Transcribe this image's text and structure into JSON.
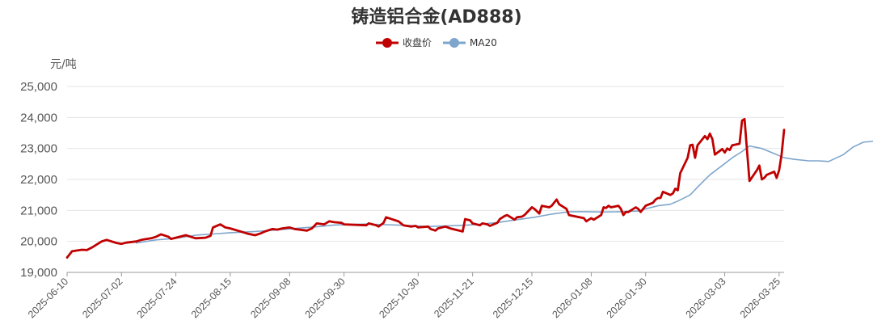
{
  "chart_data": {
    "type": "line",
    "title": "铸造铝合金(AD888)",
    "ylabel": "元/吨",
    "ylim": [
      19000,
      25000
    ],
    "yticks": [
      "19,000",
      "20,000",
      "21,000",
      "22,000",
      "23,000",
      "24,000",
      "25,000"
    ],
    "ytick_values": [
      19000,
      20000,
      21000,
      22000,
      23000,
      24000,
      25000
    ],
    "x_start": "2025-06-10",
    "x_end": "2026-03-27",
    "xticks": [
      "2025-06-10",
      "2025-07-02",
      "2025-07-24",
      "2025-08-15",
      "2025-09-08",
      "2025-09-30",
      "2025-10-30",
      "2025-11-21",
      "2025-12-15",
      "2026-01-08",
      "2026-01-30",
      "2026-03-03",
      "2026-03-25"
    ],
    "grid": true,
    "legend_position": "top-center",
    "series": [
      {
        "name": "收盘价",
        "color": "#c00000",
        "points": [
          [
            "2025-06-10",
            19480
          ],
          [
            "2025-06-12",
            19680
          ],
          [
            "2025-06-16",
            19730
          ],
          [
            "2025-06-18",
            19720
          ],
          [
            "2025-06-20",
            19800
          ],
          [
            "2025-06-24",
            20000
          ],
          [
            "2025-06-26",
            20050
          ],
          [
            "2025-06-30",
            19950
          ],
          [
            "2025-07-02",
            19920
          ],
          [
            "2025-07-04",
            19960
          ],
          [
            "2025-07-08",
            20000
          ],
          [
            "2025-07-10",
            20050
          ],
          [
            "2025-07-14",
            20100
          ],
          [
            "2025-07-16",
            20150
          ],
          [
            "2025-07-18",
            20230
          ],
          [
            "2025-07-21",
            20150
          ],
          [
            "2025-07-22",
            20080
          ],
          [
            "2025-07-24",
            20120
          ],
          [
            "2025-07-28",
            20200
          ],
          [
            "2025-07-30",
            20150
          ],
          [
            "2025-08-01",
            20100
          ],
          [
            "2025-08-05",
            20120
          ],
          [
            "2025-08-07",
            20180
          ],
          [
            "2025-08-08",
            20450
          ],
          [
            "2025-08-11",
            20550
          ],
          [
            "2025-08-13",
            20450
          ],
          [
            "2025-08-15",
            20420
          ],
          [
            "2025-08-18",
            20350
          ],
          [
            "2025-08-20",
            20300
          ],
          [
            "2025-08-22",
            20250
          ],
          [
            "2025-08-25",
            20200
          ],
          [
            "2025-08-27",
            20250
          ],
          [
            "2025-08-29",
            20320
          ],
          [
            "2025-09-01",
            20400
          ],
          [
            "2025-09-03",
            20380
          ],
          [
            "2025-09-05",
            20420
          ],
          [
            "2025-09-08",
            20450
          ],
          [
            "2025-09-10",
            20400
          ],
          [
            "2025-09-12",
            20380
          ],
          [
            "2025-09-15",
            20350
          ],
          [
            "2025-09-17",
            20420
          ],
          [
            "2025-09-19",
            20580
          ],
          [
            "2025-09-22",
            20550
          ],
          [
            "2025-09-24",
            20650
          ],
          [
            "2025-09-26",
            20620
          ],
          [
            "2025-09-29",
            20600
          ],
          [
            "2025-09-30",
            20550
          ],
          [
            "2025-10-09",
            20520
          ],
          [
            "2025-10-10",
            20580
          ],
          [
            "2025-10-13",
            20520
          ],
          [
            "2025-10-14",
            20480
          ],
          [
            "2025-10-16",
            20600
          ],
          [
            "2025-10-17",
            20780
          ],
          [
            "2025-10-20",
            20700
          ],
          [
            "2025-10-22",
            20650
          ],
          [
            "2025-10-24",
            20520
          ],
          [
            "2025-10-27",
            20480
          ],
          [
            "2025-10-29",
            20500
          ],
          [
            "2025-10-30",
            20450
          ],
          [
            "2025-11-03",
            20480
          ],
          [
            "2025-11-04",
            20400
          ],
          [
            "2025-11-06",
            20350
          ],
          [
            "2025-11-07",
            20420
          ],
          [
            "2025-11-10",
            20480
          ],
          [
            "2025-11-12",
            20420
          ],
          [
            "2025-11-14",
            20380
          ],
          [
            "2025-11-17",
            20320
          ],
          [
            "2025-11-18",
            20720
          ],
          [
            "2025-11-20",
            20680
          ],
          [
            "2025-11-21",
            20580
          ],
          [
            "2025-11-24",
            20520
          ],
          [
            "2025-11-25",
            20580
          ],
          [
            "2025-11-27",
            20550
          ],
          [
            "2025-11-28",
            20500
          ],
          [
            "2025-12-01",
            20600
          ],
          [
            "2025-12-02",
            20720
          ],
          [
            "2025-12-04",
            20820
          ],
          [
            "2025-12-05",
            20850
          ],
          [
            "2025-12-08",
            20700
          ],
          [
            "2025-12-09",
            20780
          ],
          [
            "2025-12-11",
            20800
          ],
          [
            "2025-12-12",
            20850
          ],
          [
            "2025-12-15",
            21100
          ],
          [
            "2025-12-16",
            21050
          ],
          [
            "2025-12-18",
            20900
          ],
          [
            "2025-12-19",
            21150
          ],
          [
            "2025-12-22",
            21100
          ],
          [
            "2025-12-23",
            21150
          ],
          [
            "2025-12-24",
            21250
          ],
          [
            "2025-12-25",
            21350
          ],
          [
            "2025-12-26",
            21200
          ],
          [
            "2025-12-29",
            21050
          ],
          [
            "2025-12-30",
            20850
          ],
          [
            "2026-01-02",
            20800
          ],
          [
            "2026-01-05",
            20750
          ],
          [
            "2026-01-06",
            20650
          ],
          [
            "2026-01-07",
            20700
          ],
          [
            "2026-01-08",
            20750
          ],
          [
            "2026-01-09",
            20700
          ],
          [
            "2026-01-12",
            20850
          ],
          [
            "2026-01-13",
            21100
          ],
          [
            "2026-01-14",
            21080
          ],
          [
            "2026-01-15",
            21150
          ],
          [
            "2026-01-16",
            21100
          ],
          [
            "2026-01-19",
            21150
          ],
          [
            "2026-01-20",
            21050
          ],
          [
            "2026-01-21",
            20850
          ],
          [
            "2026-01-22",
            20950
          ],
          [
            "2026-01-23",
            20950
          ],
          [
            "2026-01-26",
            21100
          ],
          [
            "2026-01-27",
            21050
          ],
          [
            "2026-01-28",
            20950
          ],
          [
            "2026-01-29",
            21050
          ],
          [
            "2026-01-30",
            21150
          ],
          [
            "2026-02-02",
            21250
          ],
          [
            "2026-02-03",
            21350
          ],
          [
            "2026-02-04",
            21400
          ],
          [
            "2026-02-05",
            21400
          ],
          [
            "2026-02-06",
            21600
          ],
          [
            "2026-02-09",
            21500
          ],
          [
            "2026-02-10",
            21550
          ],
          [
            "2026-02-11",
            21700
          ],
          [
            "2026-02-12",
            21650
          ],
          [
            "2026-02-13",
            22200
          ],
          [
            "2026-02-16",
            22700
          ],
          [
            "2026-02-17",
            23100
          ],
          [
            "2026-02-18",
            23120
          ],
          [
            "2026-02-19",
            22700
          ],
          [
            "2026-02-20",
            23100
          ],
          [
            "2026-02-23",
            23400
          ],
          [
            "2026-02-24",
            23300
          ],
          [
            "2026-02-25",
            23480
          ],
          [
            "2026-02-26",
            23300
          ],
          [
            "2026-02-27",
            22800
          ],
          [
            "2026-03-02",
            22980
          ],
          [
            "2026-03-03",
            22870
          ],
          [
            "2026-03-04",
            23000
          ],
          [
            "2026-03-05",
            22950
          ],
          [
            "2026-03-06",
            23100
          ],
          [
            "2026-03-09",
            23150
          ],
          [
            "2026-03-10",
            23900
          ],
          [
            "2026-03-11",
            23950
          ],
          [
            "2026-03-12",
            22950
          ],
          [
            "2026-03-13",
            21950
          ],
          [
            "2026-03-16",
            22300
          ],
          [
            "2026-03-17",
            22450
          ],
          [
            "2026-03-18",
            22000
          ],
          [
            "2026-03-19",
            22050
          ],
          [
            "2026-03-20",
            22150
          ],
          [
            "2026-03-23",
            22250
          ],
          [
            "2026-03-24",
            22050
          ],
          [
            "2026-03-25",
            22300
          ],
          [
            "2026-03-26",
            22800
          ],
          [
            "2026-03-27",
            23600
          ]
        ]
      },
      {
        "name": "MA20",
        "color": "#7ea6cc",
        "points": [
          [
            "2025-07-08",
            19950
          ],
          [
            "2025-07-16",
            20050
          ],
          [
            "2025-07-24",
            20100
          ],
          [
            "2025-08-01",
            20200
          ],
          [
            "2025-08-08",
            20240
          ],
          [
            "2025-08-15",
            20280
          ],
          [
            "2025-08-25",
            20320
          ],
          [
            "2025-09-03",
            20370
          ],
          [
            "2025-09-12",
            20430
          ],
          [
            "2025-09-19",
            20470
          ],
          [
            "2025-09-26",
            20530
          ],
          [
            "2025-10-09",
            20560
          ],
          [
            "2025-10-17",
            20540
          ],
          [
            "2025-10-24",
            20520
          ],
          [
            "2025-11-03",
            20480
          ],
          [
            "2025-11-10",
            20500
          ],
          [
            "2025-11-18",
            20520
          ],
          [
            "2025-11-25",
            20560
          ],
          [
            "2025-12-02",
            20620
          ],
          [
            "2025-12-09",
            20700
          ],
          [
            "2025-12-16",
            20780
          ],
          [
            "2025-12-23",
            20880
          ],
          [
            "2025-12-30",
            20960
          ],
          [
            "2026-01-06",
            20960
          ],
          [
            "2026-01-13",
            20950
          ],
          [
            "2026-01-20",
            20960
          ],
          [
            "2026-01-27",
            20980
          ],
          [
            "2026-01-30",
            21050
          ],
          [
            "2026-02-04",
            21150
          ],
          [
            "2026-02-09",
            21200
          ],
          [
            "2026-02-12",
            21300
          ],
          [
            "2026-02-17",
            21500
          ],
          [
            "2026-02-20",
            21750
          ],
          [
            "2026-02-25",
            22150
          ],
          [
            "2026-03-02",
            22450
          ],
          [
            "2026-03-06",
            22700
          ],
          [
            "2026-03-10",
            22900
          ],
          [
            "2026-03-13",
            23080
          ],
          [
            "2026-03-18",
            23000
          ],
          [
            "2026-03-24",
            22800
          ],
          [
            "2026-03-27",
            22700
          ],
          [
            "2026-03-31",
            22650
          ],
          [
            "2026-04-06",
            22600
          ],
          [
            "2026-04-10",
            22600
          ],
          [
            "2026-04-14",
            22580
          ],
          [
            "2026-04-20",
            22800
          ],
          [
            "2026-04-24",
            23050
          ],
          [
            "2026-04-28",
            23200
          ],
          [
            "2026-05-04",
            23250
          ],
          [
            "2026-05-08",
            23280
          ]
        ]
      }
    ]
  }
}
